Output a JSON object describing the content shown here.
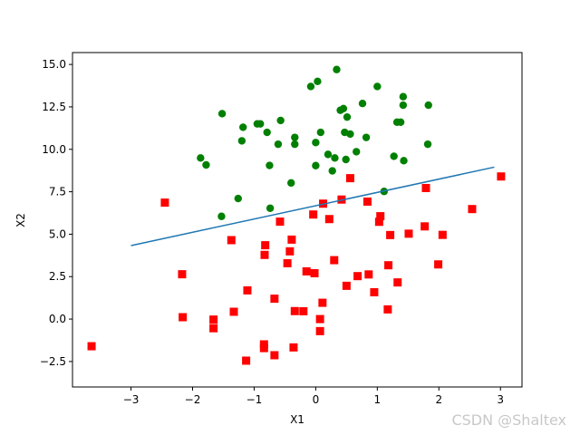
{
  "chart_data": {
    "type": "scatter",
    "title": "",
    "xlabel": "X1",
    "ylabel": "X2",
    "xlim": [
      -3.95,
      3.35
    ],
    "ylim": [
      -4.0,
      15.7
    ],
    "xticks": [
      -3,
      -2,
      -1,
      0,
      1,
      2,
      3
    ],
    "xtick_labels": [
      "−3",
      "−2",
      "−1",
      "0",
      "1",
      "2",
      "3"
    ],
    "yticks": [
      -2.5,
      0.0,
      2.5,
      5.0,
      7.5,
      10.0,
      12.5,
      15.0
    ],
    "ytick_labels": [
      "−2.5",
      "0.0",
      "2.5",
      "5.0",
      "7.5",
      "10.0",
      "12.5",
      "15.0"
    ],
    "grid": false,
    "colors": {
      "class_1": "#008000",
      "class_0": "#ff0000",
      "decision_boundary": "#1f77b4"
    },
    "series": [
      {
        "marker": "circle",
        "color": "#008000",
        "x": [
          -1.87,
          -1.78,
          -1.52,
          -1.53,
          -1.26,
          -1.2,
          -1.18,
          -0.95,
          -0.9,
          -0.79,
          -0.74,
          -0.75,
          -0.61,
          -0.57,
          -0.4,
          -0.34,
          -0.34,
          -0.08,
          0.0,
          0.0,
          0.03,
          0.08,
          0.12,
          0.2,
          0.27,
          0.31,
          0.34,
          0.4,
          0.45,
          0.47,
          0.49,
          0.51,
          0.56,
          0.66,
          0.76,
          0.82,
          1.0,
          1.11,
          1.27,
          1.32,
          1.38,
          1.42,
          1.42,
          1.43,
          1.82,
          1.83
        ],
        "y": [
          9.49,
          9.08,
          12.1,
          6.05,
          7.1,
          10.5,
          11.3,
          11.5,
          11.5,
          11.0,
          6.53,
          9.05,
          10.3,
          11.7,
          8.02,
          10.3,
          10.7,
          13.7,
          10.4,
          9.04,
          14.0,
          11.0,
          6.79,
          9.7,
          8.73,
          9.49,
          14.7,
          12.3,
          12.4,
          11.0,
          9.4,
          11.9,
          10.9,
          9.86,
          12.7,
          10.7,
          13.7,
          7.52,
          9.59,
          11.6,
          11.6,
          12.6,
          13.1,
          9.33,
          10.3,
          12.6
        ]
      },
      {
        "marker": "square",
        "color": "#ff0000",
        "x": [
          -3.64,
          -2.45,
          -2.17,
          -2.16,
          -1.66,
          -1.66,
          -1.37,
          -1.33,
          -1.13,
          -1.11,
          -0.84,
          -0.84,
          -0.83,
          -0.82,
          -0.67,
          -0.67,
          -0.58,
          -0.46,
          -0.42,
          -0.39,
          -0.36,
          -0.34,
          -0.2,
          -0.15,
          -0.04,
          -0.02,
          0.07,
          0.07,
          0.11,
          0.12,
          0.22,
          0.3,
          0.42,
          0.5,
          0.56,
          0.68,
          0.84,
          0.86,
          0.95,
          1.03,
          1.05,
          1.17,
          1.18,
          1.21,
          1.33,
          1.51,
          1.77,
          1.79,
          1.99,
          2.06,
          2.54,
          3.01
        ],
        "y": [
          -1.6,
          6.86,
          2.64,
          0.11,
          -0.54,
          -0.03,
          4.65,
          0.43,
          -2.45,
          1.69,
          -1.71,
          -1.49,
          3.78,
          4.35,
          -2.13,
          1.2,
          5.74,
          3.29,
          3.99,
          4.68,
          -1.67,
          0.47,
          0.46,
          2.81,
          6.16,
          2.7,
          -0.71,
          0.0,
          0.96,
          6.8,
          5.89,
          3.47,
          7.04,
          1.96,
          8.3,
          2.53,
          6.92,
          2.63,
          1.58,
          5.73,
          6.06,
          0.57,
          3.17,
          4.95,
          2.16,
          5.03,
          5.46,
          7.72,
          3.22,
          4.96,
          6.48,
          8.4
        ]
      },
      {
        "type": "line",
        "color": "#1f77b4",
        "x": [
          -3.0,
          2.9
        ],
        "y": [
          4.33,
          8.95
        ]
      }
    ]
  },
  "watermark": "CSDN @Shaltex"
}
